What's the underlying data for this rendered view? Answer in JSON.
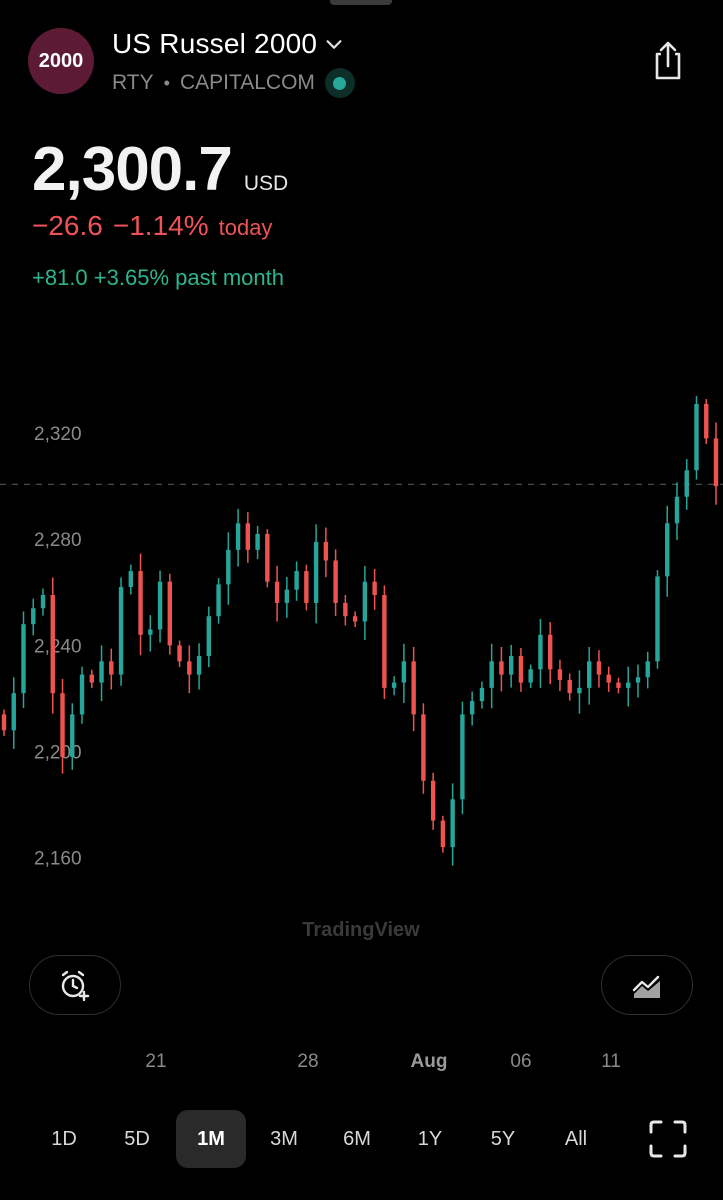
{
  "header": {
    "logo_text": "2000",
    "title": "US Russel 2000",
    "ticker": "RTY",
    "separator": "•",
    "exchange": "CAPITALCOM",
    "status_color": "#26a89a",
    "share_icon": "share-icon"
  },
  "quote": {
    "price": "2,300.7",
    "currency": "USD",
    "change_today": "−26.6",
    "change_today_pct": "−1.14%",
    "change_today_label": "today",
    "change_month": "+81.0 +3.65% past month",
    "down_color": "#f0525a",
    "up_color": "#2db58e"
  },
  "chart_data": {
    "type": "candlestick",
    "y_ticks": [
      "2,320",
      "2,280",
      "2,240",
      "2,200",
      "2,160"
    ],
    "y_tick_values": [
      2320,
      2280,
      2240,
      2200,
      2160
    ],
    "ylim": [
      2129,
      2340
    ],
    "current_price_line": 2300.7,
    "grid": false,
    "x_ticks": [
      "21",
      "28",
      "Aug",
      "06",
      "11"
    ],
    "watermark": "TradingView",
    "closes": [
      2208,
      2222,
      2248,
      2254,
      2259,
      2222,
      2198,
      2214,
      2229,
      2226,
      2234,
      2229,
      2262,
      2268,
      2244,
      2246,
      2264,
      2240,
      2234,
      2229,
      2236,
      2251,
      2263,
      2276,
      2286,
      2276,
      2282,
      2264,
      2256,
      2261,
      2268,
      2256,
      2279,
      2272,
      2256,
      2251,
      2249,
      2264,
      2259,
      2224,
      2226,
      2234,
      2214,
      2189,
      2174,
      2164,
      2182,
      2214,
      2219,
      2224,
      2234,
      2229,
      2236,
      2226,
      2231,
      2244,
      2231,
      2227,
      2222,
      2224,
      2234,
      2229,
      2226,
      2224,
      2226,
      2228,
      2234,
      2266,
      2286,
      2296,
      2306,
      2331,
      2318,
      2300
    ],
    "up_color": "#26a69a",
    "down_color": "#ef5350"
  },
  "controls": {
    "alarm_icon": "add-alert-icon",
    "chart_type_icon": "area-chart-icon",
    "ranges": [
      "1D",
      "5D",
      "1M",
      "3M",
      "6M",
      "1Y",
      "5Y",
      "All"
    ],
    "active_range": "1M",
    "fullscreen_icon": "fullscreen-icon"
  }
}
